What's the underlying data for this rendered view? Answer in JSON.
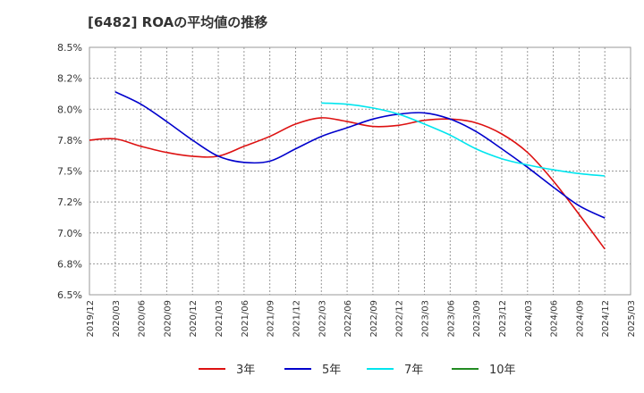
{
  "chart_data": {
    "type": "line",
    "title": "[6482]  ROAの平均値の推移",
    "xlabel": "",
    "ylabel": "",
    "ylim": [
      6.5,
      8.5
    ],
    "y_ticks": [
      "8.5%",
      "8.2%",
      "8.0%",
      "7.8%",
      "7.5%",
      "7.2%",
      "7.0%",
      "6.8%",
      "6.5%"
    ],
    "x_ticks": [
      "2019/12",
      "2020/03",
      "2020/06",
      "2020/09",
      "2020/12",
      "2021/03",
      "2021/06",
      "2021/09",
      "2021/12",
      "2022/03",
      "2022/06",
      "2022/09",
      "2022/12",
      "2023/03",
      "2023/06",
      "2023/09",
      "2023/12",
      "2024/03",
      "2024/06",
      "2024/09",
      "2024/12",
      "2025/03"
    ],
    "grid": true,
    "legend_position": "bottom",
    "series": [
      {
        "name": "3年",
        "color": "#dd1111",
        "points": [
          [
            "2019/12",
            7.75
          ],
          [
            "2020/03",
            7.76
          ],
          [
            "2020/06",
            7.7
          ],
          [
            "2020/09",
            7.65
          ],
          [
            "2020/12",
            7.62
          ],
          [
            "2021/03",
            7.62
          ],
          [
            "2021/06",
            7.7
          ],
          [
            "2021/09",
            7.78
          ],
          [
            "2021/12",
            7.88
          ],
          [
            "2022/03",
            7.93
          ],
          [
            "2022/06",
            7.9
          ],
          [
            "2022/09",
            7.86
          ],
          [
            "2022/12",
            7.87
          ],
          [
            "2023/03",
            7.91
          ],
          [
            "2023/06",
            7.92
          ],
          [
            "2023/09",
            7.89
          ],
          [
            "2023/12",
            7.8
          ],
          [
            "2024/03",
            7.65
          ],
          [
            "2024/06",
            7.42
          ],
          [
            "2024/09",
            7.15
          ],
          [
            "2024/12",
            6.87
          ]
        ]
      },
      {
        "name": "5年",
        "color": "#0000cc",
        "points": [
          [
            "2020/03",
            8.14
          ],
          [
            "2020/06",
            8.04
          ],
          [
            "2020/09",
            7.9
          ],
          [
            "2020/12",
            7.75
          ],
          [
            "2021/03",
            7.62
          ],
          [
            "2021/06",
            7.57
          ],
          [
            "2021/09",
            7.58
          ],
          [
            "2021/12",
            7.68
          ],
          [
            "2022/03",
            7.78
          ],
          [
            "2022/06",
            7.85
          ],
          [
            "2022/09",
            7.92
          ],
          [
            "2022/12",
            7.96
          ],
          [
            "2023/03",
            7.97
          ],
          [
            "2023/06",
            7.92
          ],
          [
            "2023/09",
            7.82
          ],
          [
            "2023/12",
            7.68
          ],
          [
            "2024/03",
            7.53
          ],
          [
            "2024/06",
            7.37
          ],
          [
            "2024/09",
            7.22
          ],
          [
            "2024/12",
            7.12
          ]
        ]
      },
      {
        "name": "7年",
        "color": "#00e5ee",
        "points": [
          [
            "2022/03",
            8.05
          ],
          [
            "2022/06",
            8.04
          ],
          [
            "2022/09",
            8.01
          ],
          [
            "2022/12",
            7.96
          ],
          [
            "2023/03",
            7.88
          ],
          [
            "2023/06",
            7.79
          ],
          [
            "2023/09",
            7.68
          ],
          [
            "2023/12",
            7.6
          ],
          [
            "2024/03",
            7.55
          ],
          [
            "2024/06",
            7.51
          ],
          [
            "2024/09",
            7.48
          ],
          [
            "2024/12",
            7.46
          ]
        ]
      },
      {
        "name": "10年",
        "color": "#228b22",
        "points": []
      }
    ]
  }
}
